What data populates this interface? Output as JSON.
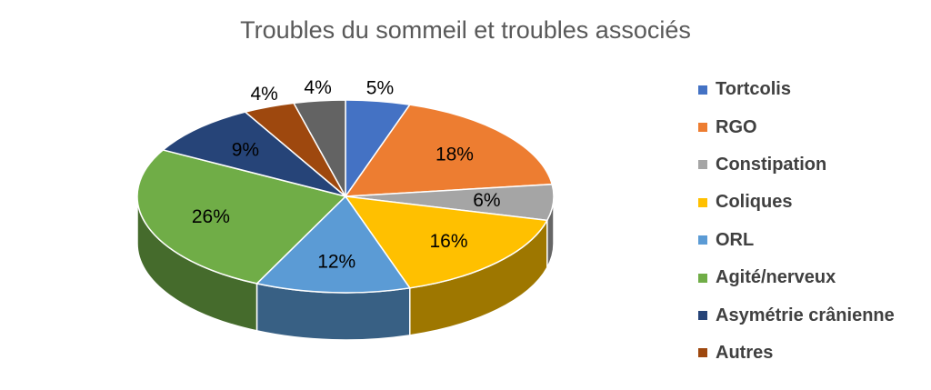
{
  "chart_data": {
    "type": "pie",
    "title": "Troubles du sommeil et troubles associés",
    "slices": [
      {
        "label": "Tortcolis",
        "value": 5,
        "value_label": "5%",
        "color": "#4472C4"
      },
      {
        "label": "RGO",
        "value": 18,
        "value_label": "18%",
        "color": "#ED7D31"
      },
      {
        "label": "Constipation",
        "value": 6,
        "value_label": "6%",
        "color": "#A5A5A5"
      },
      {
        "label": "Coliques",
        "value": 16,
        "value_label": "16%",
        "color": "#FFC000"
      },
      {
        "label": "ORL",
        "value": 12,
        "value_label": "12%",
        "color": "#5B9BD5"
      },
      {
        "label": "Agité/nerveux",
        "value": 26,
        "value_label": "26%",
        "color": "#70AD47"
      },
      {
        "label": "Asymétrie crânienne",
        "value": 9,
        "value_label": "9%",
        "color": "#264478"
      },
      {
        "label": "Autres",
        "value": 4,
        "value_label": "4%",
        "color": "#9E480E"
      },
      {
        "label": "",
        "value": 4,
        "value_label": "4%",
        "color": "#636363"
      }
    ],
    "legend_position": "right",
    "style": "3d"
  }
}
